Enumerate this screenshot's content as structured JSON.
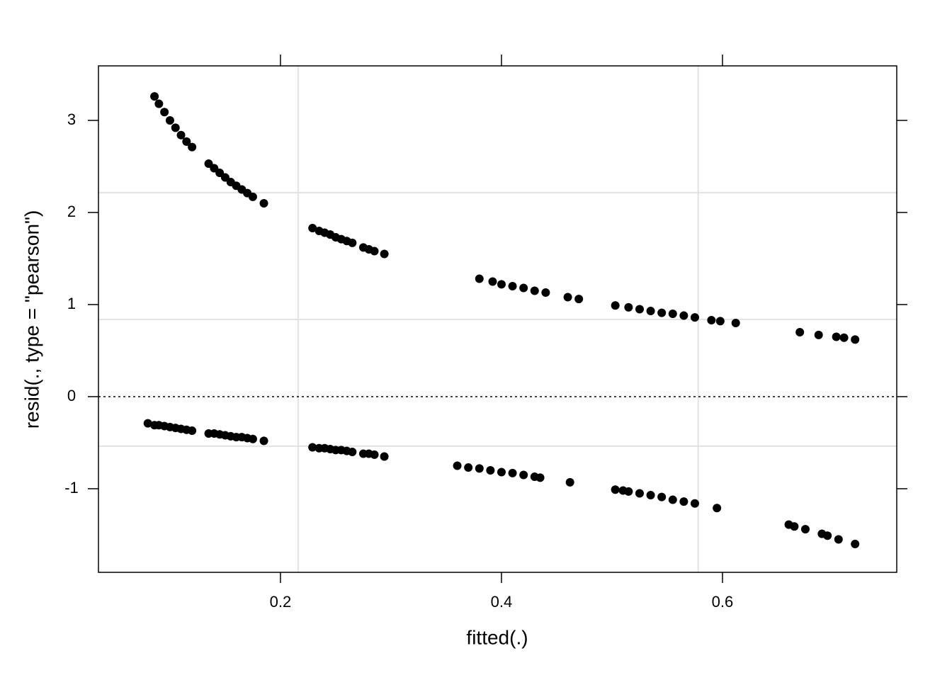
{
  "chart_data": {
    "type": "scatter",
    "x_label": "fitted(.)",
    "y_label": "resid(., type = \"pearson\")",
    "xlim": [
      0.0353,
      0.7577
    ],
    "ylim": [
      -1.908,
      3.592
    ],
    "xticks": [
      0.2,
      0.4,
      0.6
    ],
    "yticks": [
      -1,
      0,
      1,
      2,
      3
    ],
    "xgrid": [
      0.216,
      0.578
    ],
    "ygrid": [
      -0.538,
      0.838,
      2.215
    ],
    "hline": 0,
    "series": [
      {
        "color": "#000000",
        "x": [
          0.086,
          0.09,
          0.095,
          0.1,
          0.105,
          0.11,
          0.115,
          0.12,
          0.135,
          0.14,
          0.145,
          0.15,
          0.155,
          0.16,
          0.165,
          0.17,
          0.175,
          0.185,
          0.08,
          0.086,
          0.09,
          0.095,
          0.1,
          0.105,
          0.11,
          0.115,
          0.12,
          0.135,
          0.14,
          0.145,
          0.15,
          0.155,
          0.16,
          0.165,
          0.17,
          0.175,
          0.185,
          0.229,
          0.235,
          0.24,
          0.245,
          0.25,
          0.255,
          0.26,
          0.265,
          0.275,
          0.28,
          0.285,
          0.294,
          0.229,
          0.235,
          0.24,
          0.245,
          0.25,
          0.255,
          0.26,
          0.265,
          0.275,
          0.28,
          0.285,
          0.294,
          0.38,
          0.392,
          0.4,
          0.41,
          0.42,
          0.43,
          0.44,
          0.46,
          0.47,
          0.36,
          0.37,
          0.38,
          0.39,
          0.4,
          0.41,
          0.42,
          0.43,
          0.435,
          0.462,
          0.503,
          0.515,
          0.525,
          0.535,
          0.545,
          0.555,
          0.565,
          0.575,
          0.59,
          0.598,
          0.612,
          0.503,
          0.51,
          0.515,
          0.525,
          0.535,
          0.545,
          0.555,
          0.565,
          0.575,
          0.595,
          0.67,
          0.687,
          0.703,
          0.71,
          0.72,
          0.66,
          0.665,
          0.675,
          0.69,
          0.695,
          0.705,
          0.72
        ],
        "values": [
          3.26,
          3.18,
          3.09,
          3,
          2.92,
          2.84,
          2.77,
          2.71,
          2.53,
          2.48,
          2.43,
          2.38,
          2.33,
          2.29,
          2.25,
          2.21,
          2.17,
          2.1,
          -0.29,
          -0.31,
          -0.31,
          -0.32,
          -0.33,
          -0.34,
          -0.35,
          -0.36,
          -0.37,
          -0.4,
          -0.4,
          -0.41,
          -0.42,
          -0.43,
          -0.44,
          -0.44,
          -0.45,
          -0.46,
          -0.48,
          1.83,
          1.8,
          1.78,
          1.76,
          1.73,
          1.71,
          1.69,
          1.67,
          1.62,
          1.6,
          1.58,
          1.55,
          -0.55,
          -0.56,
          -0.56,
          -0.57,
          -0.58,
          -0.58,
          -0.59,
          -0.6,
          -0.62,
          -0.62,
          -0.63,
          -0.65,
          1.28,
          1.25,
          1.22,
          1.2,
          1.18,
          1.15,
          1.13,
          1.08,
          1.06,
          -0.75,
          -0.77,
          -0.78,
          -0.8,
          -0.82,
          -0.83,
          -0.85,
          -0.87,
          -0.88,
          -0.93,
          0.99,
          0.97,
          0.95,
          0.93,
          0.91,
          0.9,
          0.88,
          0.86,
          0.83,
          0.82,
          0.8,
          -1.01,
          -1.02,
          -1.03,
          -1.05,
          -1.07,
          -1.09,
          -1.12,
          -1.14,
          -1.16,
          -1.21,
          0.7,
          0.67,
          0.65,
          0.64,
          0.62,
          -1.39,
          -1.41,
          -1.44,
          -1.49,
          -1.51,
          -1.55,
          -1.6
        ]
      }
    ]
  }
}
